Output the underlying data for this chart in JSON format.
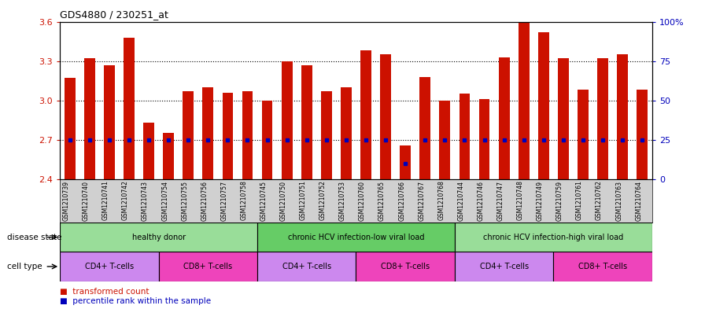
{
  "title": "GDS4880 / 230251_at",
  "samples": [
    "GSM1210739",
    "GSM1210740",
    "GSM1210741",
    "GSM1210742",
    "GSM1210743",
    "GSM1210754",
    "GSM1210755",
    "GSM1210756",
    "GSM1210757",
    "GSM1210758",
    "GSM1210745",
    "GSM1210750",
    "GSM1210751",
    "GSM1210752",
    "GSM1210753",
    "GSM1210760",
    "GSM1210765",
    "GSM1210766",
    "GSM1210767",
    "GSM1210768",
    "GSM1210744",
    "GSM1210746",
    "GSM1210747",
    "GSM1210748",
    "GSM1210749",
    "GSM1210759",
    "GSM1210761",
    "GSM1210762",
    "GSM1210763",
    "GSM1210764"
  ],
  "bar_values": [
    3.17,
    3.32,
    3.27,
    3.48,
    2.83,
    2.75,
    3.07,
    3.1,
    3.06,
    3.07,
    3.0,
    3.3,
    3.27,
    3.07,
    3.1,
    3.38,
    3.35,
    2.66,
    3.18,
    3.0,
    3.05,
    3.01,
    3.33,
    3.6,
    3.52,
    3.32,
    3.08,
    3.32,
    3.35,
    3.08
  ],
  "percentile_values": [
    25,
    25,
    25,
    25,
    25,
    25,
    25,
    25,
    25,
    25,
    25,
    25,
    25,
    25,
    25,
    25,
    25,
    10,
    25,
    25,
    25,
    25,
    25,
    25,
    25,
    25,
    25,
    25,
    25,
    25
  ],
  "ymin": 2.4,
  "ymax": 3.6,
  "yticks_left": [
    2.4,
    2.7,
    3.0,
    3.3,
    3.6
  ],
  "yticks_right": [
    0,
    25,
    50,
    75,
    100
  ],
  "bar_color": "#cc1100",
  "percentile_color": "#0000bb",
  "disease_states": [
    {
      "label": "healthy donor",
      "start": 0,
      "end": 9,
      "color": "#99dd99"
    },
    {
      "label": "chronic HCV infection-low viral load",
      "start": 10,
      "end": 19,
      "color": "#66cc66"
    },
    {
      "label": "chronic HCV infection-high viral load",
      "start": 20,
      "end": 29,
      "color": "#99dd99"
    }
  ],
  "cell_types": [
    {
      "label": "CD4+ T-cells",
      "start": 0,
      "end": 4,
      "color": "#cc88ee"
    },
    {
      "label": "CD8+ T-cells",
      "start": 5,
      "end": 9,
      "color": "#ee44bb"
    },
    {
      "label": "CD4+ T-cells",
      "start": 10,
      "end": 14,
      "color": "#cc88ee"
    },
    {
      "label": "CD8+ T-cells",
      "start": 15,
      "end": 19,
      "color": "#ee44bb"
    },
    {
      "label": "CD4+ T-cells",
      "start": 20,
      "end": 24,
      "color": "#cc88ee"
    },
    {
      "label": "CD8+ T-cells",
      "start": 25,
      "end": 29,
      "color": "#ee44bb"
    }
  ],
  "bar_width": 0.55,
  "xlabel_bg_color": "#d0d0d0",
  "disease_label": "disease state",
  "cell_label": "cell type"
}
